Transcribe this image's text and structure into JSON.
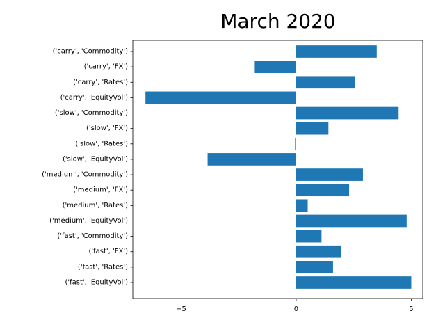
{
  "chart_data": {
    "type": "bar",
    "orientation": "horizontal",
    "title": "March 2020",
    "xlabel": "",
    "ylabel": "",
    "xlim": [
      -7.1,
      5.5
    ],
    "xticks": [
      {
        "value": -5,
        "label": "−5"
      },
      {
        "value": 0,
        "label": "0"
      },
      {
        "value": 5,
        "label": "5"
      }
    ],
    "grid": false,
    "bar_color": "#1f77b4",
    "categories": [
      "('fast', 'EquityVol')",
      "('fast', 'Rates')",
      "('fast', 'FX')",
      "('fast', 'Commodity')",
      "('medium', 'EquityVol')",
      "('medium', 'Rates')",
      "('medium', 'FX')",
      "('medium', 'Commodity')",
      "('slow', 'EquityVol')",
      "('slow', 'Rates')",
      "('slow', 'FX')",
      "('slow', 'Commodity')",
      "('carry', 'EquityVol')",
      "('carry', 'Rates')",
      "('carry', 'FX')",
      "('carry', 'Commodity')"
    ],
    "values": [
      5.0,
      1.6,
      1.95,
      1.1,
      4.8,
      0.5,
      2.3,
      2.9,
      -3.85,
      -0.05,
      1.4,
      4.45,
      -6.55,
      2.55,
      -1.8,
      3.5
    ]
  }
}
